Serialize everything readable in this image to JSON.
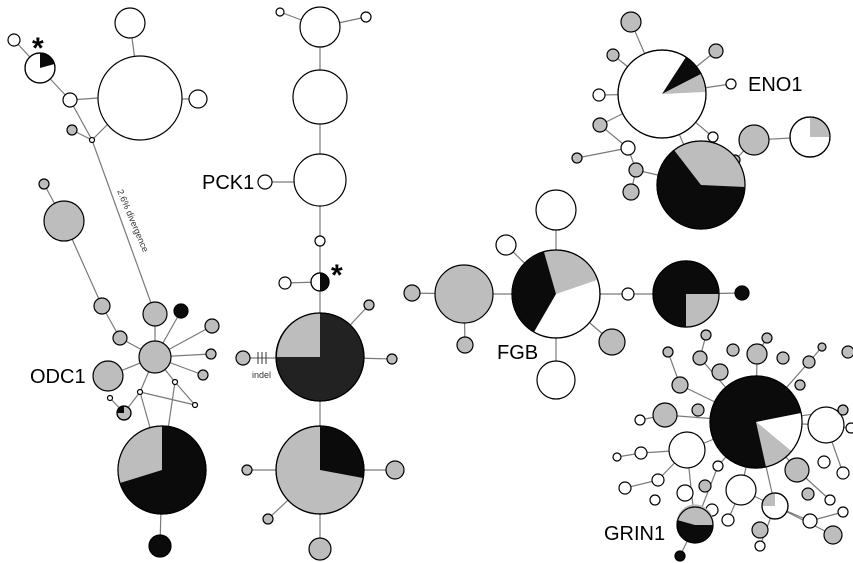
{
  "colors": {
    "white": "#ffffff",
    "grey": "#bdbdbd",
    "black": "#0b0b0b",
    "edge": "#7a7a7a"
  },
  "labels": {
    "odc1": "ODC1",
    "pck1": "PCK1",
    "fgb": "FGB",
    "eno1": "ENO1",
    "grin1": "GRIN1",
    "divergence": "2.6% divergence",
    "indel": "indel",
    "star": "*"
  }
}
